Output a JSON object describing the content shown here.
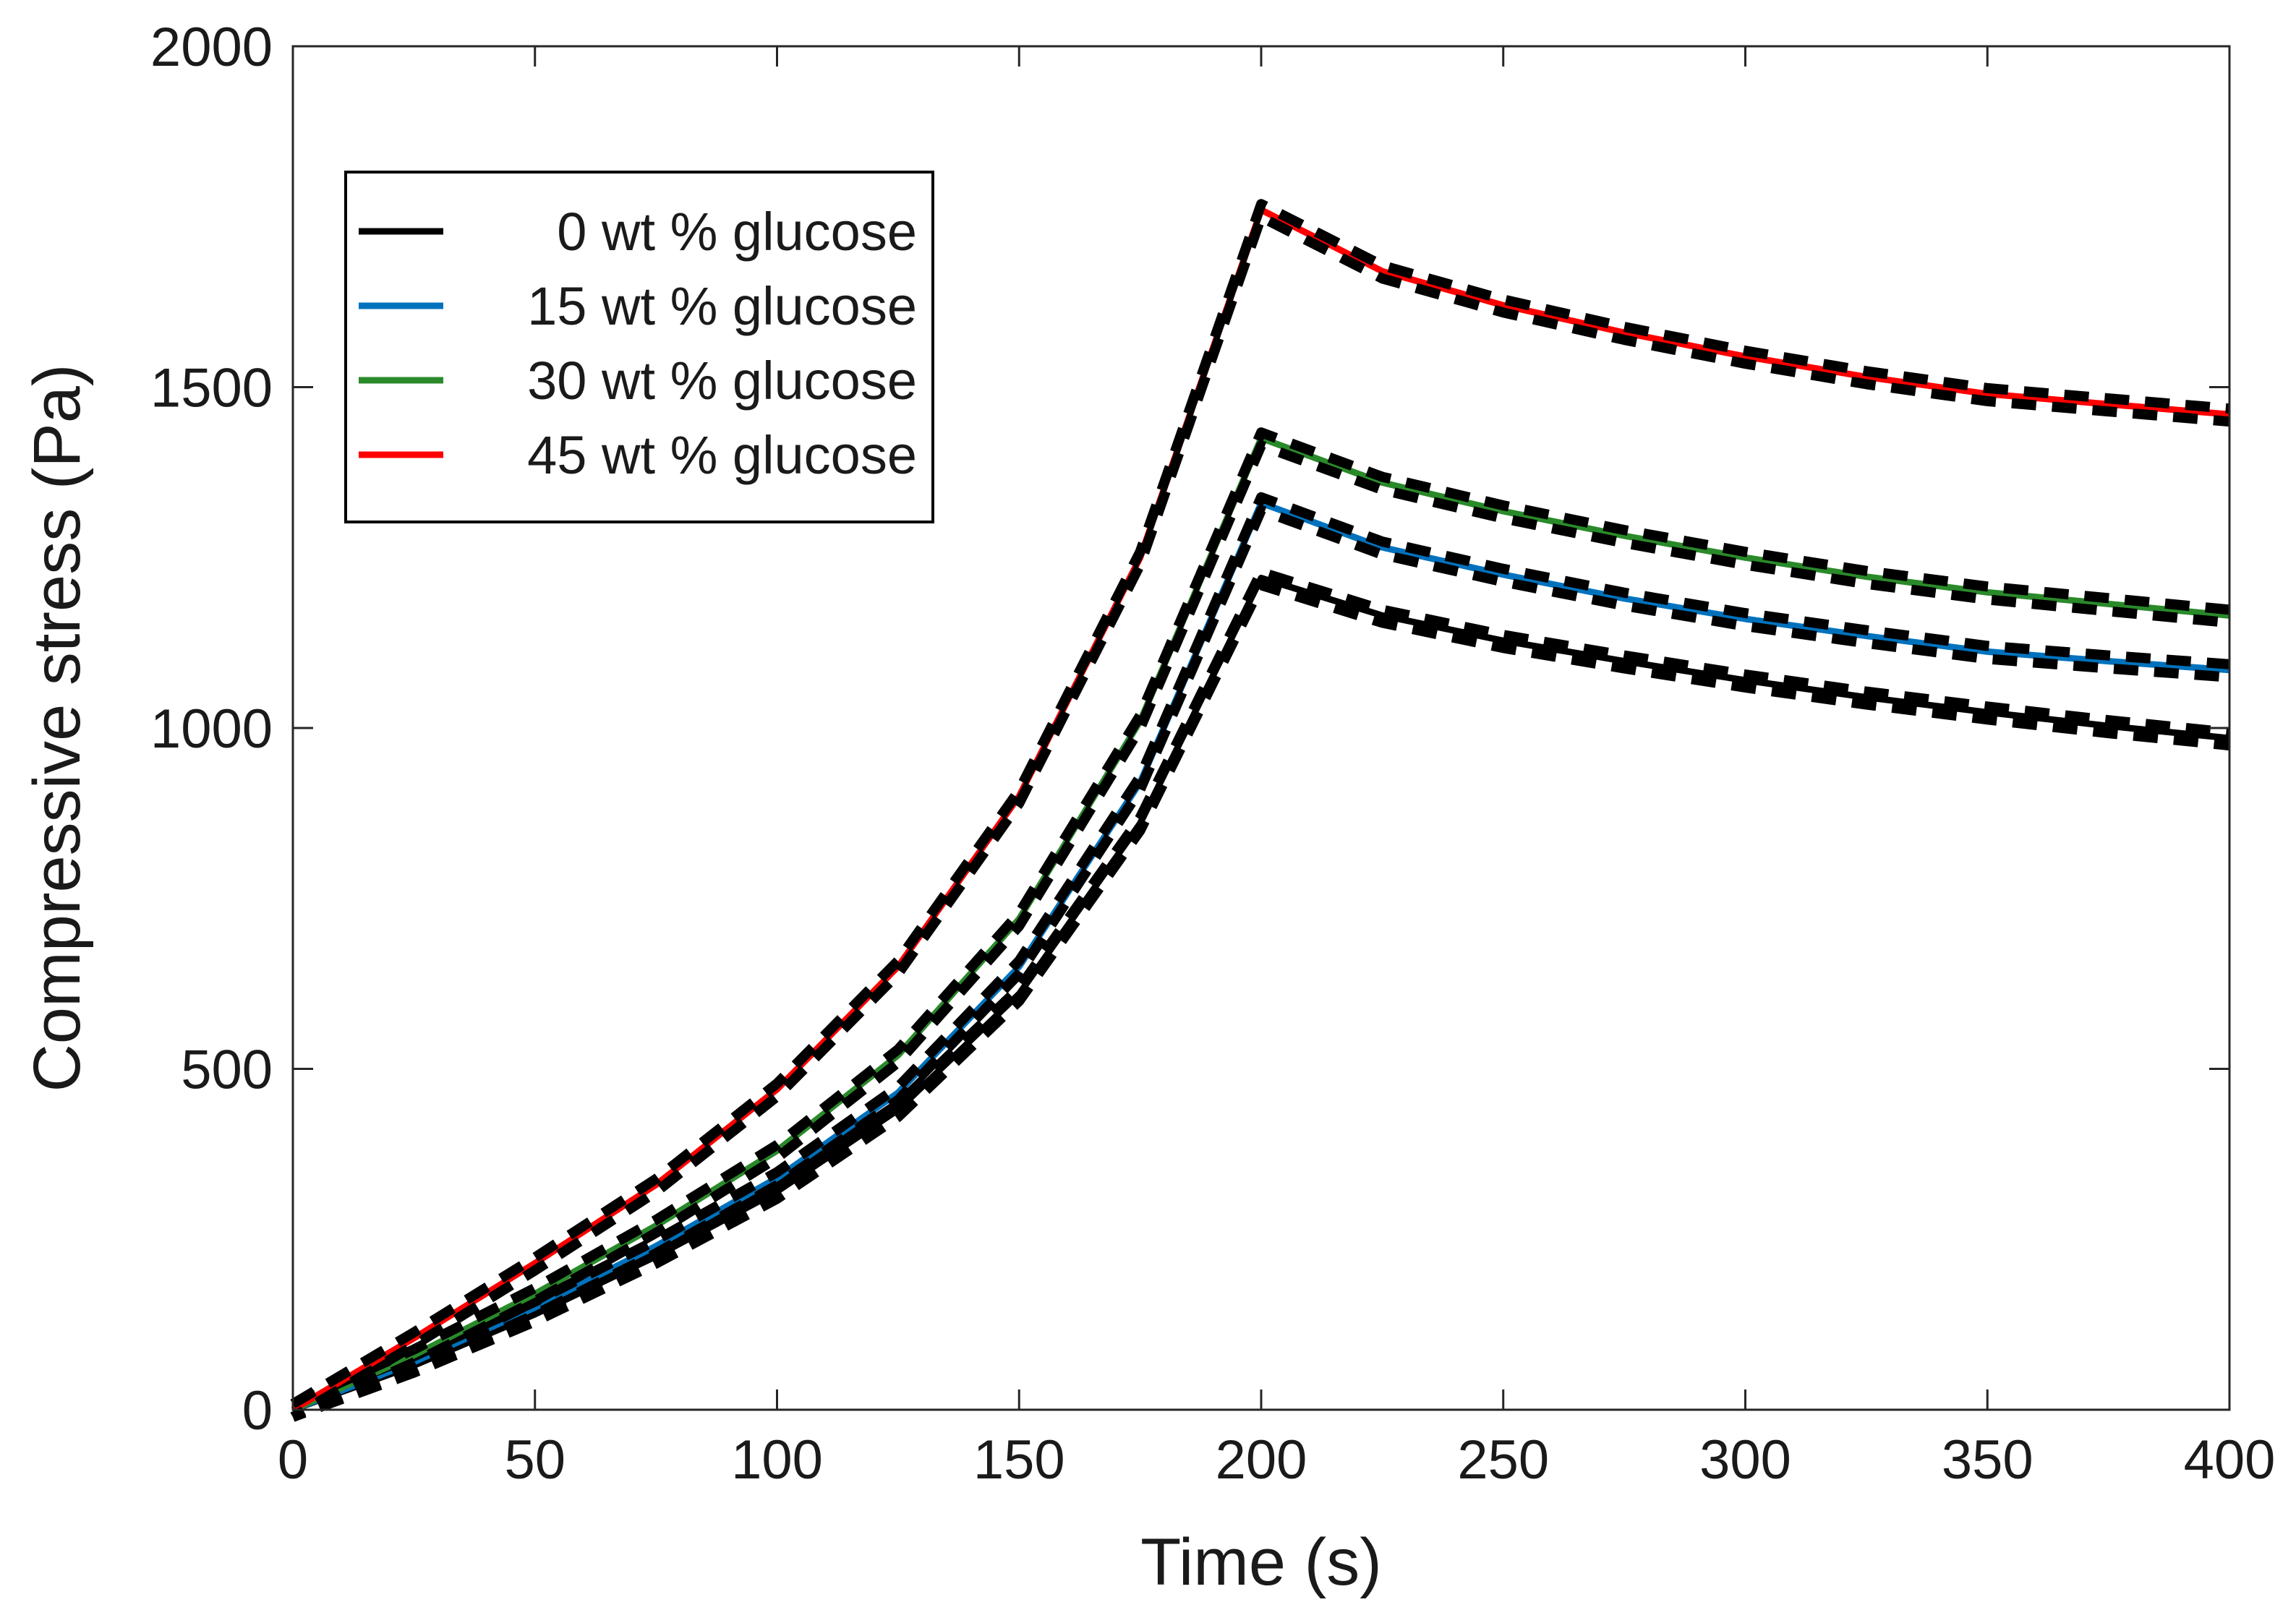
{
  "chart_data": {
    "type": "line",
    "title": "",
    "xlabel": "Time (s)",
    "ylabel": "Compressive stress (Pa)",
    "xlim": [
      0,
      400
    ],
    "ylim": [
      0,
      2000
    ],
    "xticks": [
      0,
      50,
      100,
      150,
      200,
      250,
      300,
      350,
      400
    ],
    "yticks": [
      0,
      500,
      1000,
      1500,
      2000
    ],
    "xtick_labels": [
      "0",
      "50",
      "100",
      "150",
      "200",
      "250",
      "300",
      "350",
      "400"
    ],
    "ytick_labels": [
      "0",
      "500",
      "1000",
      "1500",
      "2000"
    ],
    "grid": false,
    "legend_position": "top-left",
    "series": [
      {
        "name": "0 wt % glucose",
        "color": "#000000",
        "x": [
          0,
          25,
          50,
          75,
          100,
          125,
          150,
          175,
          200,
          225,
          250,
          275,
          300,
          325,
          350,
          375,
          400
        ],
        "y": [
          0,
          65,
          140,
          225,
          320,
          440,
          610,
          860,
          1220,
          1165,
          1128,
          1098,
          1070,
          1045,
          1023,
          1003,
          985
        ]
      },
      {
        "name": "15 wt % glucose",
        "color": "#0072bd",
        "x": [
          0,
          25,
          50,
          75,
          100,
          125,
          150,
          175,
          200,
          225,
          250,
          275,
          300,
          325,
          350,
          375,
          400
        ],
        "y": [
          0,
          70,
          150,
          240,
          340,
          465,
          650,
          920,
          1330,
          1265,
          1225,
          1190,
          1160,
          1135,
          1112,
          1098,
          1085
        ]
      },
      {
        "name": "30 wt % glucose",
        "color": "#2a8a2a",
        "x": [
          0,
          25,
          50,
          75,
          100,
          125,
          150,
          175,
          200,
          225,
          250,
          275,
          300,
          325,
          350,
          375,
          400
        ],
        "y": [
          0,
          80,
          170,
          270,
          380,
          520,
          720,
          1010,
          1425,
          1360,
          1318,
          1282,
          1250,
          1222,
          1199,
          1182,
          1165
        ]
      },
      {
        "name": "45 wt % glucose",
        "color": "#ff0000",
        "x": [
          0,
          25,
          50,
          75,
          100,
          125,
          150,
          175,
          200,
          225,
          250,
          275,
          300,
          325,
          350,
          375,
          400
        ],
        "y": [
          0,
          105,
          215,
          330,
          470,
          650,
          900,
          1250,
          1760,
          1670,
          1620,
          1580,
          1545,
          1515,
          1490,
          1475,
          1460
        ]
      }
    ],
    "fit_lines": {
      "style": "dashed",
      "color": "#000000",
      "note": "black dashed fits overlay each series"
    }
  }
}
